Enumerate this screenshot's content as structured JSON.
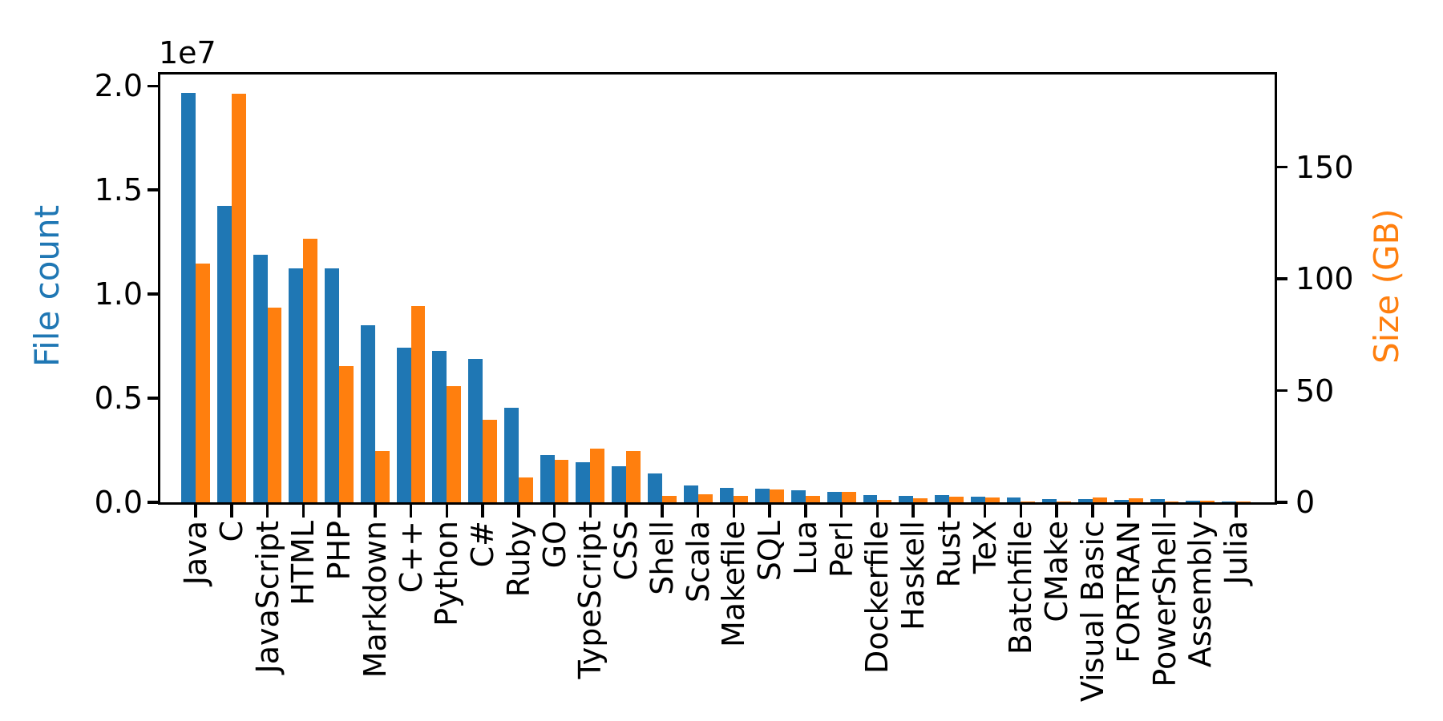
{
  "chart_data": {
    "type": "bar",
    "title": "",
    "categories": [
      "Java",
      "C",
      "JavaScript",
      "HTML",
      "PHP",
      "Markdown",
      "C++",
      "Python",
      "C#",
      "Ruby",
      "GO",
      "TypeScript",
      "CSS",
      "Shell",
      "Scala",
      "Makefile",
      "SQL",
      "Lua",
      "Perl",
      "Dockerfile",
      "Haskell",
      "Rust",
      "TeX",
      "Batchfile",
      "CMake",
      "Visual Basic",
      "FORTRAN",
      "PowerShell",
      "Assembly",
      "Julia"
    ],
    "series": [
      {
        "name": "File count",
        "axis": "left",
        "color": "#1f77b4",
        "values": [
          19650000,
          14230000,
          11880000,
          11230000,
          11230000,
          8510000,
          7420000,
          7270000,
          6880000,
          4540000,
          2270000,
          1920000,
          1730000,
          1380000,
          810000,
          680000,
          670000,
          590000,
          490000,
          360000,
          320000,
          330000,
          270000,
          230000,
          165000,
          165000,
          115000,
          140000,
          80000,
          40000
        ]
      },
      {
        "name": "Size (GB)",
        "axis": "right",
        "color": "#ff7f0e",
        "values": [
          107,
          183,
          87,
          118,
          61,
          23,
          88,
          52,
          37,
          11,
          19,
          24,
          23,
          2.9,
          3.6,
          3.0,
          5.6,
          2.8,
          4.7,
          1.0,
          1.8,
          2.5,
          2.3,
          0.5,
          0.5,
          2.1,
          1.7,
          0.4,
          0.8,
          0.2
        ]
      }
    ],
    "left_axis": {
      "label": "File count",
      "color": "#1f77b4",
      "offset_label": "1e7",
      "tick_labels": [
        "0.0",
        "0.5",
        "1.0",
        "1.5",
        "2.0"
      ],
      "tick_values": [
        0,
        5000000,
        10000000,
        15000000,
        20000000
      ],
      "min": 0,
      "max": 20550000
    },
    "right_axis": {
      "label": "Size (GB)",
      "color": "#ff7f0e",
      "tick_labels": [
        "0",
        "50",
        "100",
        "150"
      ],
      "tick_values": [
        0,
        50,
        100,
        150
      ],
      "min": 0,
      "max": 191.5
    },
    "grid": false,
    "legend_position": "none",
    "x_tick_rotation": 90
  }
}
